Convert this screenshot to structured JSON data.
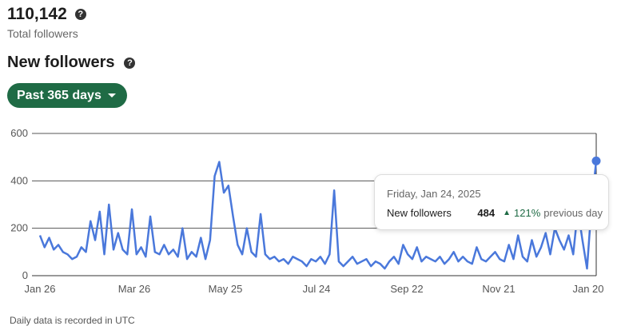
{
  "total": {
    "value": "110,142",
    "label": "Total followers",
    "help_icon": "question-circle-icon"
  },
  "section": {
    "title": "New followers",
    "help_icon": "question-circle-icon"
  },
  "range_button": {
    "label": "Past 365 days",
    "icon": "caret-down-icon"
  },
  "tooltip": {
    "date": "Friday, Jan 24, 2025",
    "metric": "New followers",
    "value": "484",
    "change": "121%",
    "change_suffix": "previous day",
    "direction": "up"
  },
  "footer": "Daily data is recorded in UTC",
  "colors": {
    "line": "#4a78db",
    "accent": "#1f6b45"
  },
  "chart_data": {
    "type": "line",
    "title": "New followers",
    "xlabel": "",
    "ylabel": "",
    "ylim": [
      0,
      600
    ],
    "yticks": [
      "0",
      "200",
      "400",
      "600"
    ],
    "xticks": [
      "Jan 26",
      "Mar 26",
      "May 25",
      "Jul 24",
      "Sep 22",
      "Nov 21",
      "Jan 20"
    ],
    "values": [
      170,
      120,
      160,
      110,
      130,
      100,
      90,
      70,
      80,
      120,
      100,
      230,
      150,
      270,
      90,
      300,
      110,
      180,
      110,
      90,
      280,
      90,
      120,
      80,
      250,
      100,
      90,
      130,
      90,
      110,
      80,
      200,
      70,
      100,
      80,
      160,
      70,
      150,
      420,
      480,
      350,
      380,
      250,
      130,
      90,
      200,
      100,
      80,
      260,
      90,
      70,
      80,
      60,
      70,
      50,
      80,
      70,
      60,
      40,
      70,
      60,
      80,
      50,
      90,
      360,
      60,
      40,
      60,
      80,
      50,
      60,
      70,
      40,
      60,
      50,
      30,
      60,
      80,
      50,
      130,
      90,
      70,
      120,
      60,
      80,
      70,
      60,
      80,
      50,
      70,
      100,
      60,
      80,
      60,
      50,
      120,
      70,
      60,
      80,
      100,
      70,
      60,
      130,
      70,
      170,
      80,
      60,
      150,
      80,
      120,
      180,
      90,
      200,
      150,
      110,
      170,
      90,
      280,
      150,
      30,
      300,
      484
    ]
  }
}
